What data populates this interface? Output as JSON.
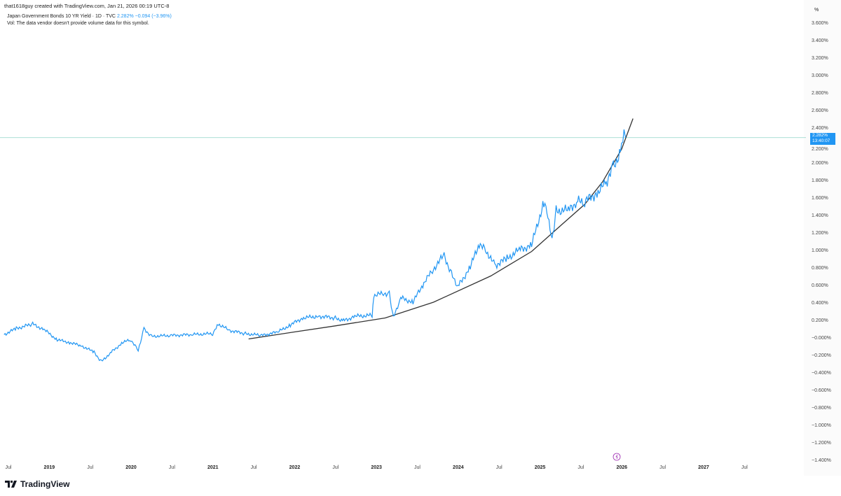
{
  "header": {
    "credit": "that1618guy created with TradingView.com, Jan 21, 2026 00:19 UTC-8",
    "symbol": "Japan Government Bonds 10 YR Yield · 1D · TVC",
    "last": "2.282%",
    "change": "−0.094 (−3.96%)",
    "volume_note": "Vol: The data vendor doesn't provide volume data for this symbol."
  },
  "price_label": {
    "value": "2.282%",
    "countdown": "13:40:07"
  },
  "logo": "TradingView",
  "colors": {
    "series": "#2196f3",
    "trend": "#333333",
    "price_line": "#8fd3c7"
  },
  "chart_data": {
    "type": "line",
    "yunit": "%",
    "ylim": [
      -1.4,
      3.6
    ],
    "yticks": [
      "3.600%",
      "3.400%",
      "3.200%",
      "3.000%",
      "2.800%",
      "2.600%",
      "2.400%",
      "2.200%",
      "2.000%",
      "1.800%",
      "1.600%",
      "1.400%",
      "1.200%",
      "1.000%",
      "0.800%",
      "0.600%",
      "0.400%",
      "0.200%",
      "−0.000%",
      "−0.200%",
      "−0.400%",
      "−0.600%",
      "−0.800%",
      "−1.000%",
      "−1.200%",
      "−1.400%"
    ],
    "xticks": [
      "Jul",
      "2019",
      "Jul",
      "2020",
      "Jul",
      "2021",
      "Jul",
      "2022",
      "Jul",
      "2023",
      "Jul",
      "2024",
      "Jul",
      "2025",
      "Jul",
      "2026",
      "Jul",
      "2027",
      "Jul"
    ],
    "grid": false,
    "series": [
      {
        "x": [
          2018.45,
          2018.6,
          2018.8,
          2018.95,
          2019.1,
          2019.25,
          2019.4,
          2019.55,
          2019.64,
          2019.75,
          2019.9,
          2020.0,
          2020.09,
          2020.16,
          2020.25,
          2020.5,
          2020.75,
          2021.0,
          2021.07,
          2021.2,
          2021.4,
          2021.6,
          2021.8,
          2021.95,
          2022.1,
          2022.3,
          2022.5,
          2022.6,
          2022.75,
          2022.95,
          2022.97,
          2023.1,
          2023.16,
          2023.21,
          2023.3,
          2023.45,
          2023.57,
          2023.7,
          2023.83,
          2023.92,
          2024.0,
          2024.15,
          2024.26,
          2024.35,
          2024.45,
          2024.6,
          2024.75,
          2024.9,
          2025.05,
          2025.1,
          2025.15,
          2025.2,
          2025.35,
          2025.45,
          2025.55,
          2025.7,
          2025.8,
          2025.9,
          2026.0,
          2026.03,
          2026.05
        ],
        "y": [
          0.03,
          0.1,
          0.15,
          0.08,
          -0.03,
          -0.06,
          -0.1,
          -0.17,
          -0.28,
          -0.18,
          -0.06,
          -0.03,
          -0.15,
          0.1,
          0.01,
          0.02,
          0.03,
          0.04,
          0.15,
          0.08,
          0.04,
          0.02,
          0.06,
          0.14,
          0.22,
          0.24,
          0.22,
          0.19,
          0.24,
          0.25,
          0.48,
          0.5,
          0.5,
          0.22,
          0.45,
          0.4,
          0.6,
          0.78,
          0.94,
          0.72,
          0.58,
          0.8,
          1.07,
          0.98,
          0.82,
          0.9,
          1.0,
          1.05,
          1.55,
          1.4,
          1.12,
          1.45,
          1.45,
          1.55,
          1.55,
          1.65,
          1.75,
          1.95,
          2.15,
          2.37,
          2.282
        ]
      }
    ],
    "trend_curve": {
      "x": [
        2021.44,
        2022.0,
        2022.5,
        2023.11,
        2023.7,
        2024.4,
        2024.9,
        2025.26,
        2025.55,
        2025.77,
        2026.0,
        2026.14
      ],
      "y": [
        -0.02,
        0.06,
        0.13,
        0.22,
        0.4,
        0.7,
        0.98,
        1.28,
        1.52,
        1.78,
        2.15,
        2.5
      ]
    }
  }
}
